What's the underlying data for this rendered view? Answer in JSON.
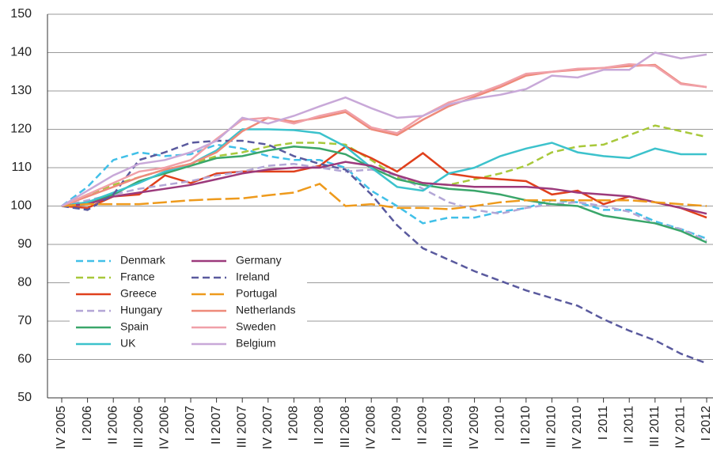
{
  "chart_data": {
    "type": "line",
    "categories": [
      "IV 2005",
      "I 2006",
      "II 2006",
      "III 2006",
      "IV 2006",
      "I 2007",
      "II 2007",
      "III 2007",
      "IV 2007",
      "I 2008",
      "II 2008",
      "III 2008",
      "IV 2008",
      "I 2009",
      "II 2009",
      "III 2009",
      "IV 2009",
      "I 2010",
      "II 2010",
      "III 2010",
      "IV 2010",
      "I 2011",
      "II 2011",
      "III 2011",
      "IV 2011",
      "I 2012"
    ],
    "ylim": [
      50,
      150
    ],
    "yticks": [
      50,
      60,
      70,
      80,
      90,
      100,
      110,
      120,
      130,
      140,
      150
    ],
    "grid": true,
    "series": [
      {
        "name": "Denmark",
        "color": "#41c0e8",
        "dash": "dashed",
        "values": [
          100,
          105,
          112,
          114,
          113,
          113.5,
          116,
          115,
          113,
          112,
          112,
          110,
          104,
          100,
          95.5,
          97,
          97,
          98.5,
          99.5,
          101.5,
          101,
          99,
          99,
          96,
          94,
          91.5
        ]
      },
      {
        "name": "France",
        "color": "#a8c83a",
        "dash": "dashed",
        "values": [
          100,
          103,
          105.5,
          107.5,
          109.5,
          111,
          113,
          114,
          115.5,
          116.5,
          116.5,
          116,
          112,
          107.5,
          106,
          105.5,
          107,
          108.5,
          110.5,
          114,
          115.5,
          116,
          118.5,
          121,
          119.5,
          118
        ]
      },
      {
        "name": "Greece",
        "color": "#e0401c",
        "dash": "solid",
        "values": [
          100,
          99.5,
          102.5,
          103,
          108,
          106,
          108.5,
          109,
          109,
          109,
          110.5,
          115.5,
          112.5,
          109,
          113.8,
          108.5,
          107.5,
          107,
          106.5,
          103,
          104,
          100.5,
          102.5,
          101,
          99.5,
          97
        ]
      },
      {
        "name": "Hungary",
        "color": "#b3a6d6",
        "dash": "dashed",
        "values": [
          100,
          101.5,
          103,
          104.5,
          105.5,
          106.5,
          108,
          109,
          110.5,
          111,
          110,
          109,
          109.5,
          108,
          104.5,
          101,
          99,
          98,
          99.5,
          100.5,
          101,
          100,
          98.5,
          95.5,
          94,
          91
        ]
      },
      {
        "name": "Spain",
        "color": "#3aa66a",
        "dash": "solid",
        "values": [
          100,
          101,
          103,
          106.5,
          108.5,
          110.5,
          112.5,
          113,
          114.5,
          115.5,
          115,
          113.5,
          110,
          107,
          105.5,
          104.5,
          104,
          103,
          101.5,
          100.5,
          100,
          97.5,
          96.5,
          95.5,
          93.5,
          90.5
        ]
      },
      {
        "name": "UK",
        "color": "#3cc2cc",
        "dash": "solid",
        "values": [
          100,
          101,
          103.5,
          106,
          109,
          111,
          114.5,
          120,
          120,
          119.8,
          119,
          115.5,
          110,
          105,
          104,
          108.5,
          110,
          113,
          115,
          116.5,
          114,
          113,
          112.5,
          115,
          113.5,
          113.5
        ]
      },
      {
        "name": "Germany",
        "color": "#9c3a7c",
        "dash": "solid",
        "values": [
          100,
          100.5,
          102.5,
          103.5,
          104.5,
          105.5,
          107,
          108.5,
          109.5,
          110,
          110,
          111.5,
          110.5,
          108,
          106,
          105.5,
          105,
          105,
          105,
          104.5,
          103.5,
          103,
          102.5,
          101,
          99.5,
          98
        ]
      },
      {
        "name": "Ireland",
        "color": "#5a5a9e",
        "dash": "dashed",
        "values": [
          100,
          99,
          103,
          112,
          114,
          116.5,
          117,
          117,
          116,
          113,
          111,
          109.5,
          103,
          95,
          89,
          86,
          83,
          80.5,
          78,
          76,
          74,
          70.5,
          67.5,
          65,
          61.5,
          59
        ]
      },
      {
        "name": "Portugal",
        "color": "#ee9a1c",
        "dash": "long",
        "values": [
          100,
          100.5,
          100.5,
          100.5,
          101,
          101.5,
          101.8,
          102,
          102.8,
          103.5,
          105.8,
          100,
          100.5,
          99.5,
          99.5,
          99.2,
          100,
          101,
          101.5,
          101.5,
          101.5,
          101.5,
          101.5,
          101,
          100.5,
          100
        ]
      },
      {
        "name": "Netherlands",
        "color": "#ee8a7a",
        "dash": "solid",
        "values": [
          100,
          102.5,
          105,
          107.5,
          109.5,
          111,
          114,
          119.5,
          123,
          122,
          123,
          124.5,
          120,
          118.5,
          122.5,
          126,
          128.5,
          131,
          134,
          135,
          135.5,
          136,
          136.5,
          136.8,
          132,
          131
        ]
      },
      {
        "name": "Sweden",
        "color": "#f0a0a8",
        "dash": "solid",
        "values": [
          100,
          103,
          106,
          109,
          110,
          112,
          117.5,
          122.5,
          123,
          121.5,
          123.5,
          125,
          120.5,
          119,
          123.5,
          127,
          129,
          131.5,
          134.5,
          135,
          135.8,
          136,
          137,
          136.5,
          131.8,
          131
        ]
      },
      {
        "name": "Belgium",
        "color": "#c8a8d8",
        "dash": "solid",
        "values": [
          100,
          104,
          108,
          111,
          112,
          114,
          117,
          123,
          121.5,
          123.5,
          126,
          128.3,
          125.5,
          123,
          123.5,
          126.5,
          128,
          129,
          130.5,
          134,
          133.5,
          135.5,
          135.5,
          140,
          138.5,
          139.5
        ]
      }
    ]
  }
}
